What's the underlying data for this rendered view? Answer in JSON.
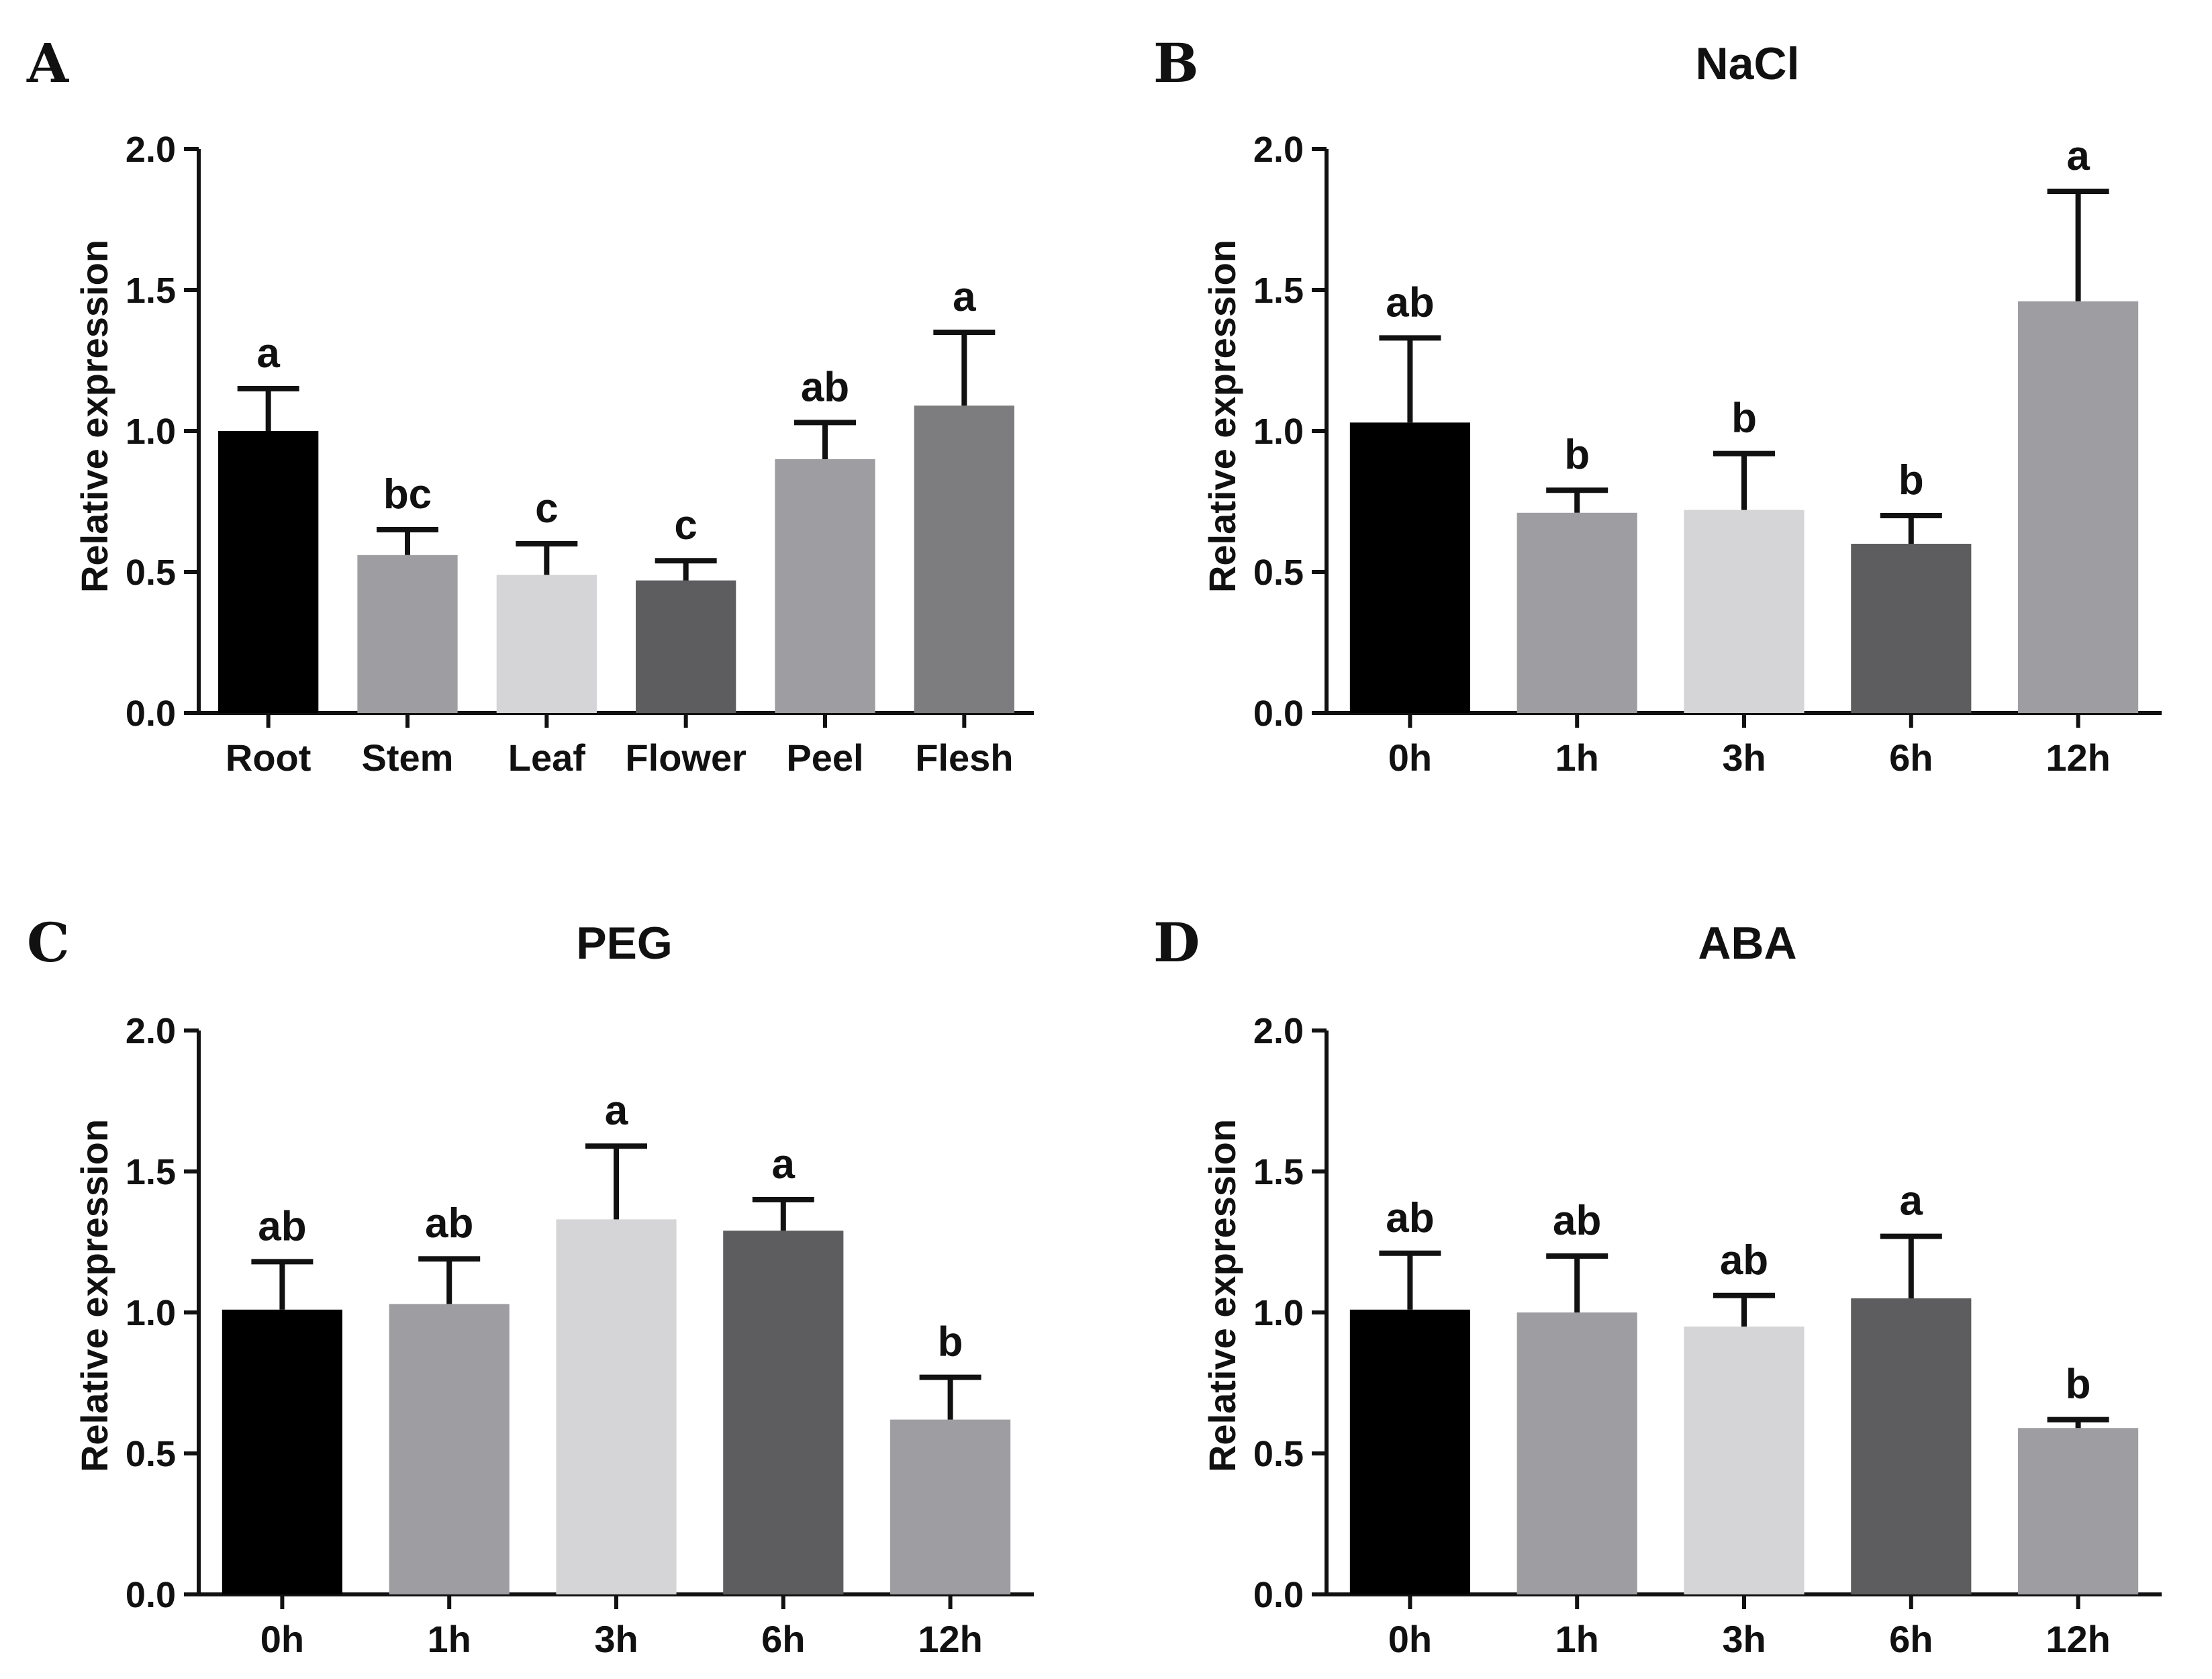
{
  "figure": {
    "panels": [
      {
        "letter": "A",
        "title": ""
      },
      {
        "letter": "B",
        "title": "NaCl"
      },
      {
        "letter": "C",
        "title": "PEG"
      },
      {
        "letter": "D",
        "title": "ABA"
      }
    ]
  },
  "chart_data": [
    {
      "type": "bar",
      "panel": "A",
      "title": "",
      "xlabel": "",
      "ylabel": "Relative expression",
      "ylim": [
        0,
        2.0
      ],
      "yticks": [
        "0.0",
        "0.5",
        "1.0",
        "1.5",
        "2.0"
      ],
      "categories": [
        "Root",
        "Stem",
        "Leaf",
        "Flower",
        "Peel",
        "Flesh"
      ],
      "values": [
        1.0,
        0.56,
        0.49,
        0.47,
        0.9,
        1.09
      ],
      "errors": [
        0.15,
        0.09,
        0.11,
        0.07,
        0.13,
        0.26
      ],
      "significance": [
        "a",
        "bc",
        "c",
        "c",
        "ab",
        "a"
      ],
      "colors": [
        "#000000",
        "#9e9ea2",
        "#d5d5d7",
        "#5d5d5f",
        "#9e9ea2",
        "#7d7d7f"
      ]
    },
    {
      "type": "bar",
      "panel": "B",
      "title": "NaCl",
      "xlabel": "",
      "ylabel": "Relative expression",
      "ylim": [
        0,
        2.0
      ],
      "yticks": [
        "0.0",
        "0.5",
        "1.0",
        "1.5",
        "2.0"
      ],
      "categories": [
        "0h",
        "1h",
        "3h",
        "6h",
        "12h"
      ],
      "values": [
        1.03,
        0.71,
        0.72,
        0.6,
        1.46
      ],
      "errors": [
        0.3,
        0.08,
        0.2,
        0.1,
        0.39
      ],
      "significance": [
        "ab",
        "b",
        "b",
        "b",
        "a"
      ],
      "colors": [
        "#000000",
        "#9e9ea2",
        "#d5d5d7",
        "#5d5d5f",
        "#9e9ea2"
      ]
    },
    {
      "type": "bar",
      "panel": "C",
      "title": "PEG",
      "xlabel": "",
      "ylabel": "Relative expression",
      "ylim": [
        0,
        2.0
      ],
      "yticks": [
        "0.0",
        "0.5",
        "1.0",
        "1.5",
        "2.0"
      ],
      "categories": [
        "0h",
        "1h",
        "3h",
        "6h",
        "12h"
      ],
      "values": [
        1.01,
        1.03,
        1.33,
        1.29,
        0.62
      ],
      "errors": [
        0.17,
        0.16,
        0.26,
        0.11,
        0.15
      ],
      "significance": [
        "ab",
        "ab",
        "a",
        "a",
        "b"
      ],
      "colors": [
        "#000000",
        "#9e9ea2",
        "#d5d5d7",
        "#5d5d5f",
        "#9e9ea2"
      ]
    },
    {
      "type": "bar",
      "panel": "D",
      "title": "ABA",
      "xlabel": "",
      "ylabel": "Relative expression",
      "ylim": [
        0,
        2.0
      ],
      "yticks": [
        "0.0",
        "0.5",
        "1.0",
        "1.5",
        "2.0"
      ],
      "categories": [
        "0h",
        "1h",
        "3h",
        "6h",
        "12h"
      ],
      "values": [
        1.01,
        1.0,
        0.95,
        1.05,
        0.59
      ],
      "errors": [
        0.2,
        0.2,
        0.11,
        0.22,
        0.03
      ],
      "significance": [
        "ab",
        "ab",
        "ab",
        "a",
        "b"
      ],
      "colors": [
        "#000000",
        "#9e9ea2",
        "#d5d5d7",
        "#5d5d5f",
        "#9e9ea2"
      ]
    }
  ]
}
